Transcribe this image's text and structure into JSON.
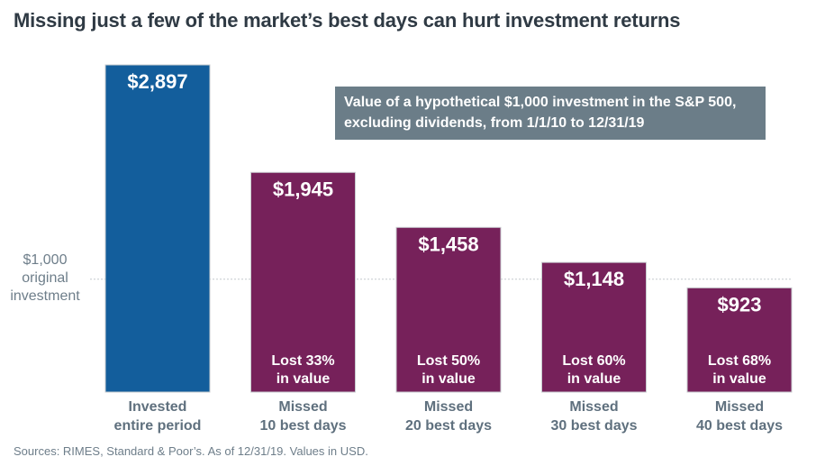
{
  "chart_data": {
    "type": "bar",
    "title": "Missing just a few of the market’s best days can hurt investment returns",
    "categories": [
      [
        "Invested",
        "entire period"
      ],
      [
        "Missed",
        "10 best days"
      ],
      [
        "Missed",
        "20 best days"
      ],
      [
        "Missed",
        "30 best days"
      ],
      [
        "Missed",
        "40 best days"
      ]
    ],
    "values": [
      2897,
      1945,
      1458,
      1148,
      923
    ],
    "value_labels": [
      "$2,897",
      "$1,945",
      "$1,458",
      "$1,148",
      "$923"
    ],
    "loss_labels": [
      null,
      [
        "Lost 33%",
        "in value"
      ],
      [
        "Lost 50%",
        "in value"
      ],
      [
        "Lost 60%",
        "in value"
      ],
      [
        "Lost 68%",
        "in value"
      ]
    ],
    "colors": [
      "#135e9c",
      "#76215a",
      "#76215a",
      "#76215a",
      "#76215a"
    ],
    "reference_line": {
      "value": 1000,
      "label": [
        "$1,000",
        "original",
        "investment"
      ]
    },
    "legend_note": [
      "Value of a hypothetical $1,000 investment in the S&P 500,",
      "excluding dividends, from 1/1/10 to 12/31/19"
    ],
    "ylim": [
      0,
      2897
    ],
    "xlabel": "",
    "ylabel": "",
    "grid": false
  },
  "source": "Sources: RIMES, Standard & Poor’s. As of 12/31/19. Values in USD."
}
